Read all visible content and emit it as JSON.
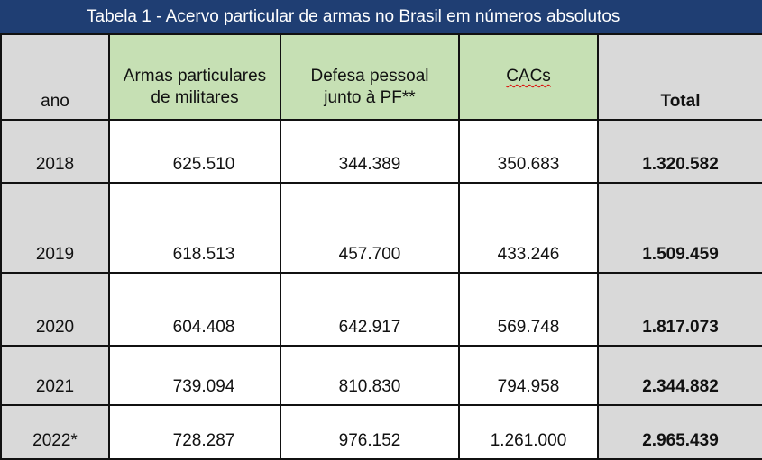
{
  "title": "Tabela 1 - Acervo particular de armas no Brasil em números absolutos",
  "headers": {
    "ano": "ano",
    "militares_line1": "Armas particulares",
    "militares_line2": "de militares",
    "defesa_line1": "Defesa pessoal",
    "defesa_line2": "junto à PF**",
    "cacs": "CACs",
    "total": "Total"
  },
  "rows": [
    {
      "ano": "2018",
      "militares": "625.510",
      "defesa": "344.389",
      "cacs": "350.683",
      "total": "1.320.582"
    },
    {
      "ano": "2019",
      "militares": "618.513",
      "defesa": "457.700",
      "cacs": "433.246",
      "total": "1.509.459"
    },
    {
      "ano": "2020",
      "militares": "604.408",
      "defesa": "642.917",
      "cacs": "569.748",
      "total": "1.817.073"
    },
    {
      "ano": "2021",
      "militares": "739.094",
      "defesa": "810.830",
      "cacs": "794.958",
      "total": "2.344.882"
    },
    {
      "ano": "2022*",
      "militares": "728.287",
      "defesa": "976.152",
      "cacs": "1.261.000",
      "total": "2.965.439"
    }
  ],
  "colors": {
    "title_bg": "#1f3e73",
    "header_green": "#c6e0b4",
    "gray_cells": "#d9d9d9"
  }
}
